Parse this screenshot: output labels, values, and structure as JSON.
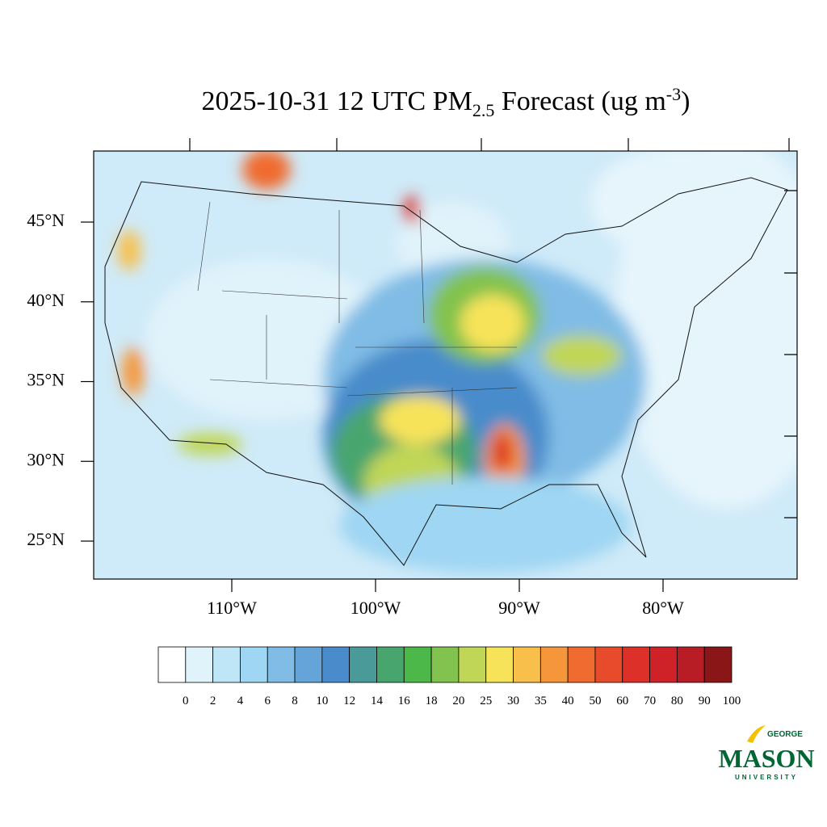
{
  "title": {
    "main": "2025-10-31 12 UTC PM",
    "subscript": "2.5",
    "middle": " Forecast (ug m",
    "superscript": "-3",
    "end": ")"
  },
  "lat_labels": [
    {
      "value": 45,
      "label": "45°N"
    },
    {
      "value": 40,
      "label": "40°N"
    },
    {
      "value": 35,
      "label": "35°N"
    },
    {
      "value": 30,
      "label": "30°N"
    },
    {
      "value": 25,
      "label": "25°N"
    }
  ],
  "lon_labels": [
    {
      "value": -110,
      "label": "110°W"
    },
    {
      "value": -100,
      "label": "100°W"
    },
    {
      "value": -90,
      "label": "90°W"
    },
    {
      "value": -80,
      "label": "80°W"
    }
  ],
  "colorbar": {
    "levels": [
      0,
      2,
      4,
      6,
      8,
      10,
      12,
      14,
      16,
      18,
      20,
      25,
      30,
      35,
      40,
      50,
      60,
      70,
      80,
      90,
      100
    ],
    "colors": [
      "#ffffff",
      "#e0f3fb",
      "#bfe6f7",
      "#9fd6f3",
      "#80bce5",
      "#64a4d8",
      "#4a8ccb",
      "#4a9a9a",
      "#48a56e",
      "#4db84a",
      "#82c24e",
      "#c0d656",
      "#f7e35a",
      "#f8bf4b",
      "#f5963b",
      "#f06b2f",
      "#e84a2c",
      "#dc3028",
      "#cf2128",
      "#b81c24",
      "#8a1618"
    ]
  },
  "logo": {
    "top": "GEORGE",
    "main": "MASON",
    "bottom": "UNIVERSITY"
  }
}
